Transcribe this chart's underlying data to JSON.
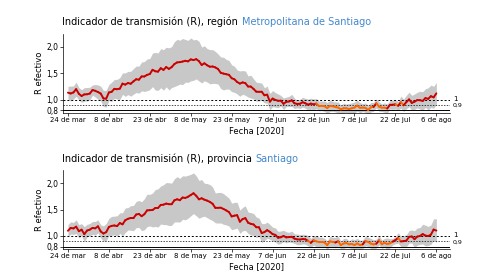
{
  "title1_prefix": "Indicador de transmisión (R), región ",
  "title1_highlight": "Metropolitana de Santiago",
  "title2_prefix": "Indicador de transmisión (R), provincia ",
  "title2_highlight": "Santiago",
  "xlabel": "Fecha [2020]",
  "ylabel": "R efectivo",
  "ylim": [
    0.75,
    2.25
  ],
  "yticks": [
    0.8,
    1.0,
    1.5,
    2.0
  ],
  "ytick_labels": [
    "0,8",
    "1,0",
    "1,5",
    "2,0"
  ],
  "hline1": 1.0,
  "hline2": 0.9,
  "hline3": 0.8,
  "highlight_color": "#4488cc",
  "ci_color": "#c8c8c8",
  "background_color": "#ffffff",
  "tick_labels": [
    "24 de mar",
    "8 de abr",
    "23 de abr",
    "8 de may",
    "23 de may",
    "7 de jun",
    "22 de jun",
    "7 de jul",
    "22 de jul",
    "6 de ago"
  ],
  "hline_label1": "1",
  "hline_label2": "0,9"
}
